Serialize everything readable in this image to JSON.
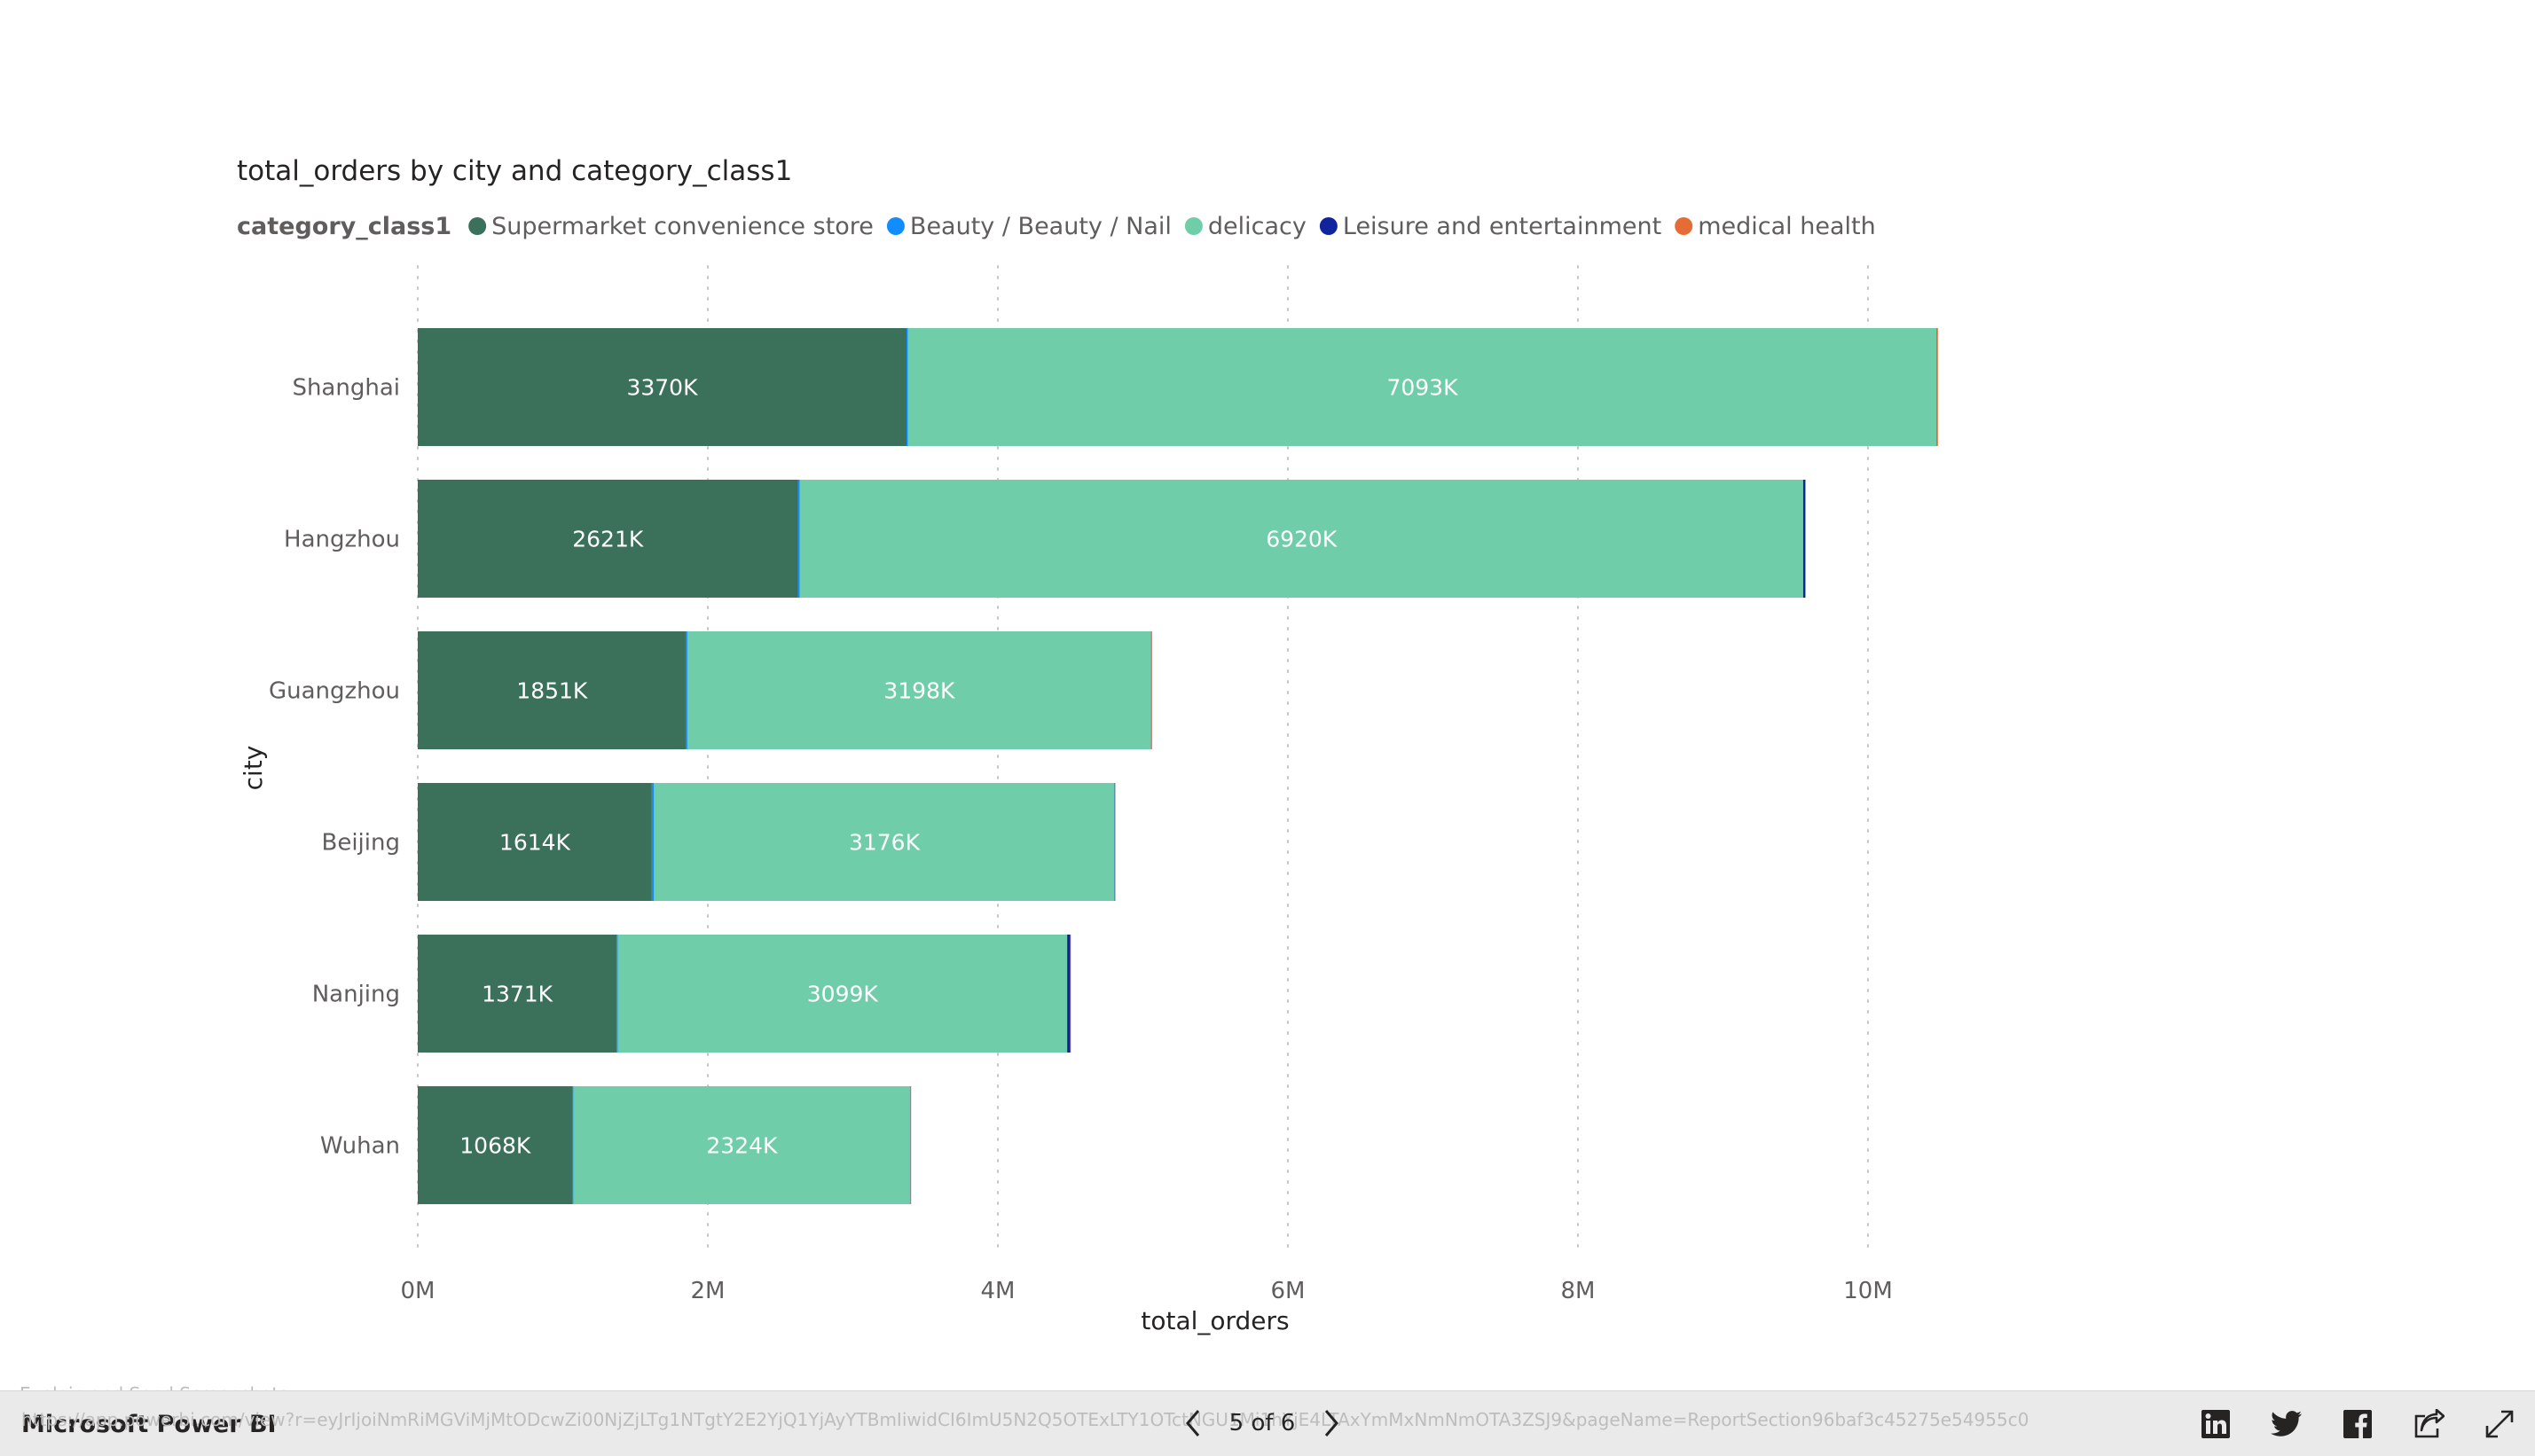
{
  "chart_data": {
    "type": "bar",
    "orientation": "horizontal",
    "stacked": true,
    "title": "total_orders by city and category_class1",
    "legend_title": "category_class1",
    "legend_position": "top-left",
    "xlabel": "total_orders",
    "ylabel": "city",
    "xlim": [
      0,
      11000000
    ],
    "x_ticks": [
      0,
      2000000,
      4000000,
      6000000,
      8000000,
      10000000
    ],
    "x_tick_labels": [
      "0M",
      "2M",
      "4M",
      "6M",
      "8M",
      "10M"
    ],
    "grid": "vertical dotted",
    "categories": [
      "Shanghai",
      "Hangzhou",
      "Guangzhou",
      "Beijing",
      "Nanjing",
      "Wuhan"
    ],
    "series": [
      {
        "name": "Supermarket convenience store",
        "color": "#3b715b",
        "values": [
          3370000,
          2621000,
          1851000,
          1614000,
          1371000,
          1068000
        ]
      },
      {
        "name": "Beauty / Beauty / Nail",
        "color": "#118dff",
        "values": [
          10000,
          12000,
          8000,
          15000,
          8000,
          5000
        ]
      },
      {
        "name": "delicacy",
        "color": "#70cdaa",
        "values": [
          7093000,
          6920000,
          3198000,
          3176000,
          3099000,
          2324000
        ]
      },
      {
        "name": "Leisure and entertainment",
        "color": "#12239e",
        "values": [
          3000,
          14000,
          3000,
          3000,
          22000,
          2000
        ]
      },
      {
        "name": "medical health",
        "color": "#e66c37",
        "values": [
          6000,
          4000,
          3000,
          2000,
          2000,
          2000
        ]
      }
    ],
    "data_labels": [
      [
        "3370K",
        "2621K",
        "1851K",
        "1614K",
        "1371K",
        "1068K"
      ],
      null,
      [
        "7093K",
        "6920K",
        "3198K",
        "3176K",
        "3099K",
        "2324K"
      ],
      null,
      null
    ]
  },
  "footer": {
    "tooltip": "Explain and Send Screenshots",
    "brand": "Microsoft Power BI",
    "url": "https://app.powerbi.com/view?r=eyJrIjoiNmRiMGViMjMtODcwZi00NjZjLTg1NTgtY2E2YjQ1YjAyYTBmIiwidCI6ImU5N2Q5OTExLTY1OTctNGU1Mi1hYjE4LTAxYmMxNmNmOTA3ZSJ9&pageName=ReportSection96baf3c45275e54955c0",
    "page_indicator": "5 of 6",
    "icons": [
      "linkedin-icon",
      "twitter-icon",
      "facebook-icon",
      "share-icon",
      "fullscreen-icon"
    ]
  }
}
